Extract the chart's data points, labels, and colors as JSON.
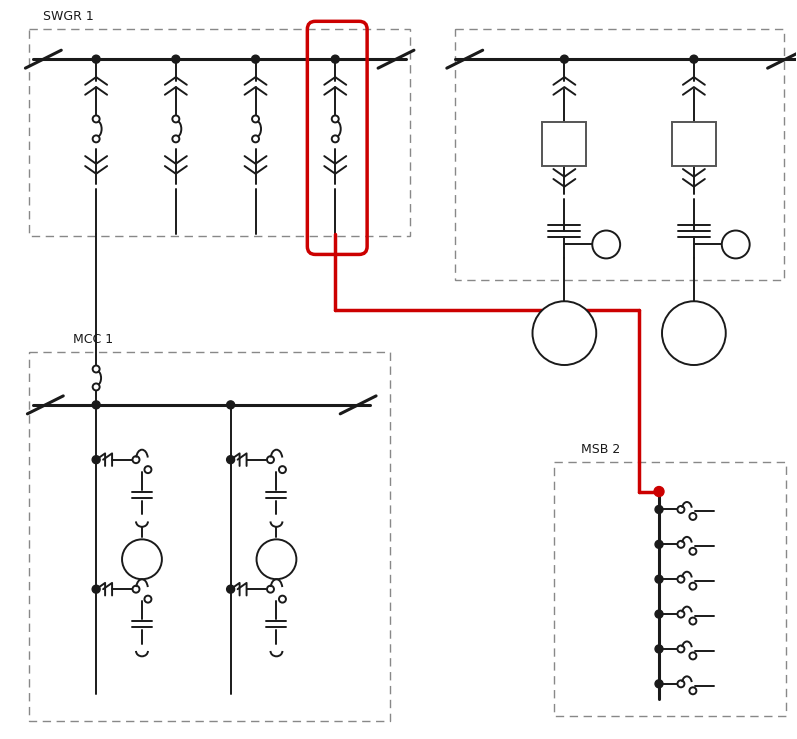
{
  "bg": "#ffffff",
  "lc": "#1a1a1a",
  "rc": "#cc0000",
  "lw": 1.4,
  "lwt": 2.2,
  "lwr": 2.5,
  "swgr1_label": "SWGR 1",
  "mcc1_label": "MCC 1",
  "msb2_label": "MSB 2",
  "figw": 7.97,
  "figh": 7.39,
  "dpi": 100
}
